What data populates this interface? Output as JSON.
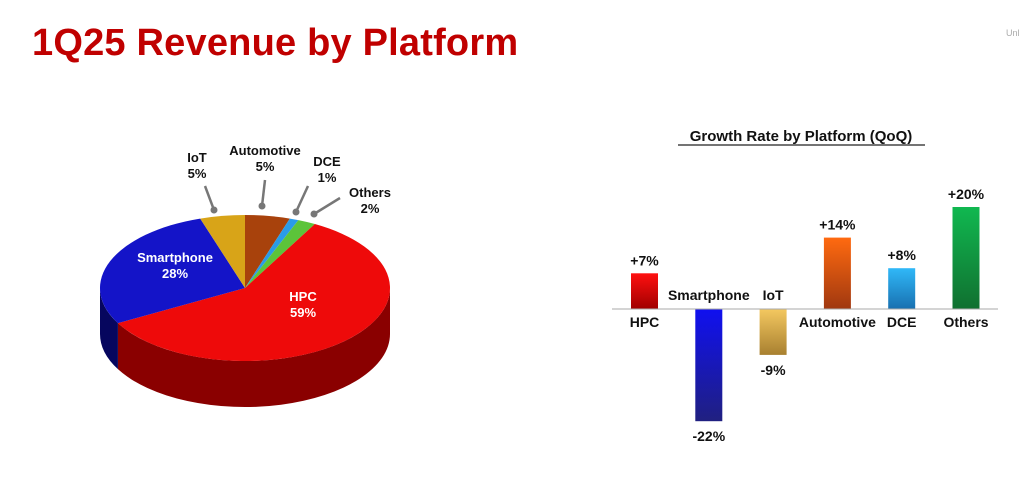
{
  "title": "1Q25 Revenue by Platform",
  "corner_text": "Unl",
  "chart_data": [
    {
      "type": "pie",
      "style": "3d",
      "categories": [
        "Automotive",
        "DCE",
        "Others",
        "HPC",
        "Smartphone",
        "IoT"
      ],
      "values": [
        5,
        1,
        2,
        59,
        28,
        5
      ],
      "labels": [
        "5%",
        "1%",
        "2%",
        "59%",
        "28%",
        "5%"
      ],
      "colors": [
        "#a8420c",
        "#2a9be8",
        "#5cc43a",
        "#ee0a0a",
        "#1414c8",
        "#d8a418"
      ],
      "side_colors": [
        "#6e2a06",
        "#155f96",
        "#2f7d1c",
        "#8a0000",
        "#06065e",
        "#8a6a0e"
      ]
    },
    {
      "type": "bar",
      "title": "Growth Rate by Platform (QoQ)",
      "categories": [
        "HPC",
        "Smartphone",
        "IoT",
        "Automotive",
        "DCE",
        "Others"
      ],
      "values": [
        7,
        -22,
        -9,
        14,
        8,
        20
      ],
      "labels": [
        "+7%",
        "-22%",
        "-9%",
        "+14%",
        "+8%",
        "+20%"
      ],
      "colors": [
        [
          "#ff1010",
          "#a00000"
        ],
        [
          "#1010f0",
          "#202080"
        ],
        [
          "#f4c860",
          "#a88030"
        ],
        [
          "#ff6a10",
          "#a03810"
        ],
        [
          "#30b8f8",
          "#1870b0"
        ],
        [
          "#10b850",
          "#107030"
        ]
      ],
      "grid": false
    }
  ]
}
